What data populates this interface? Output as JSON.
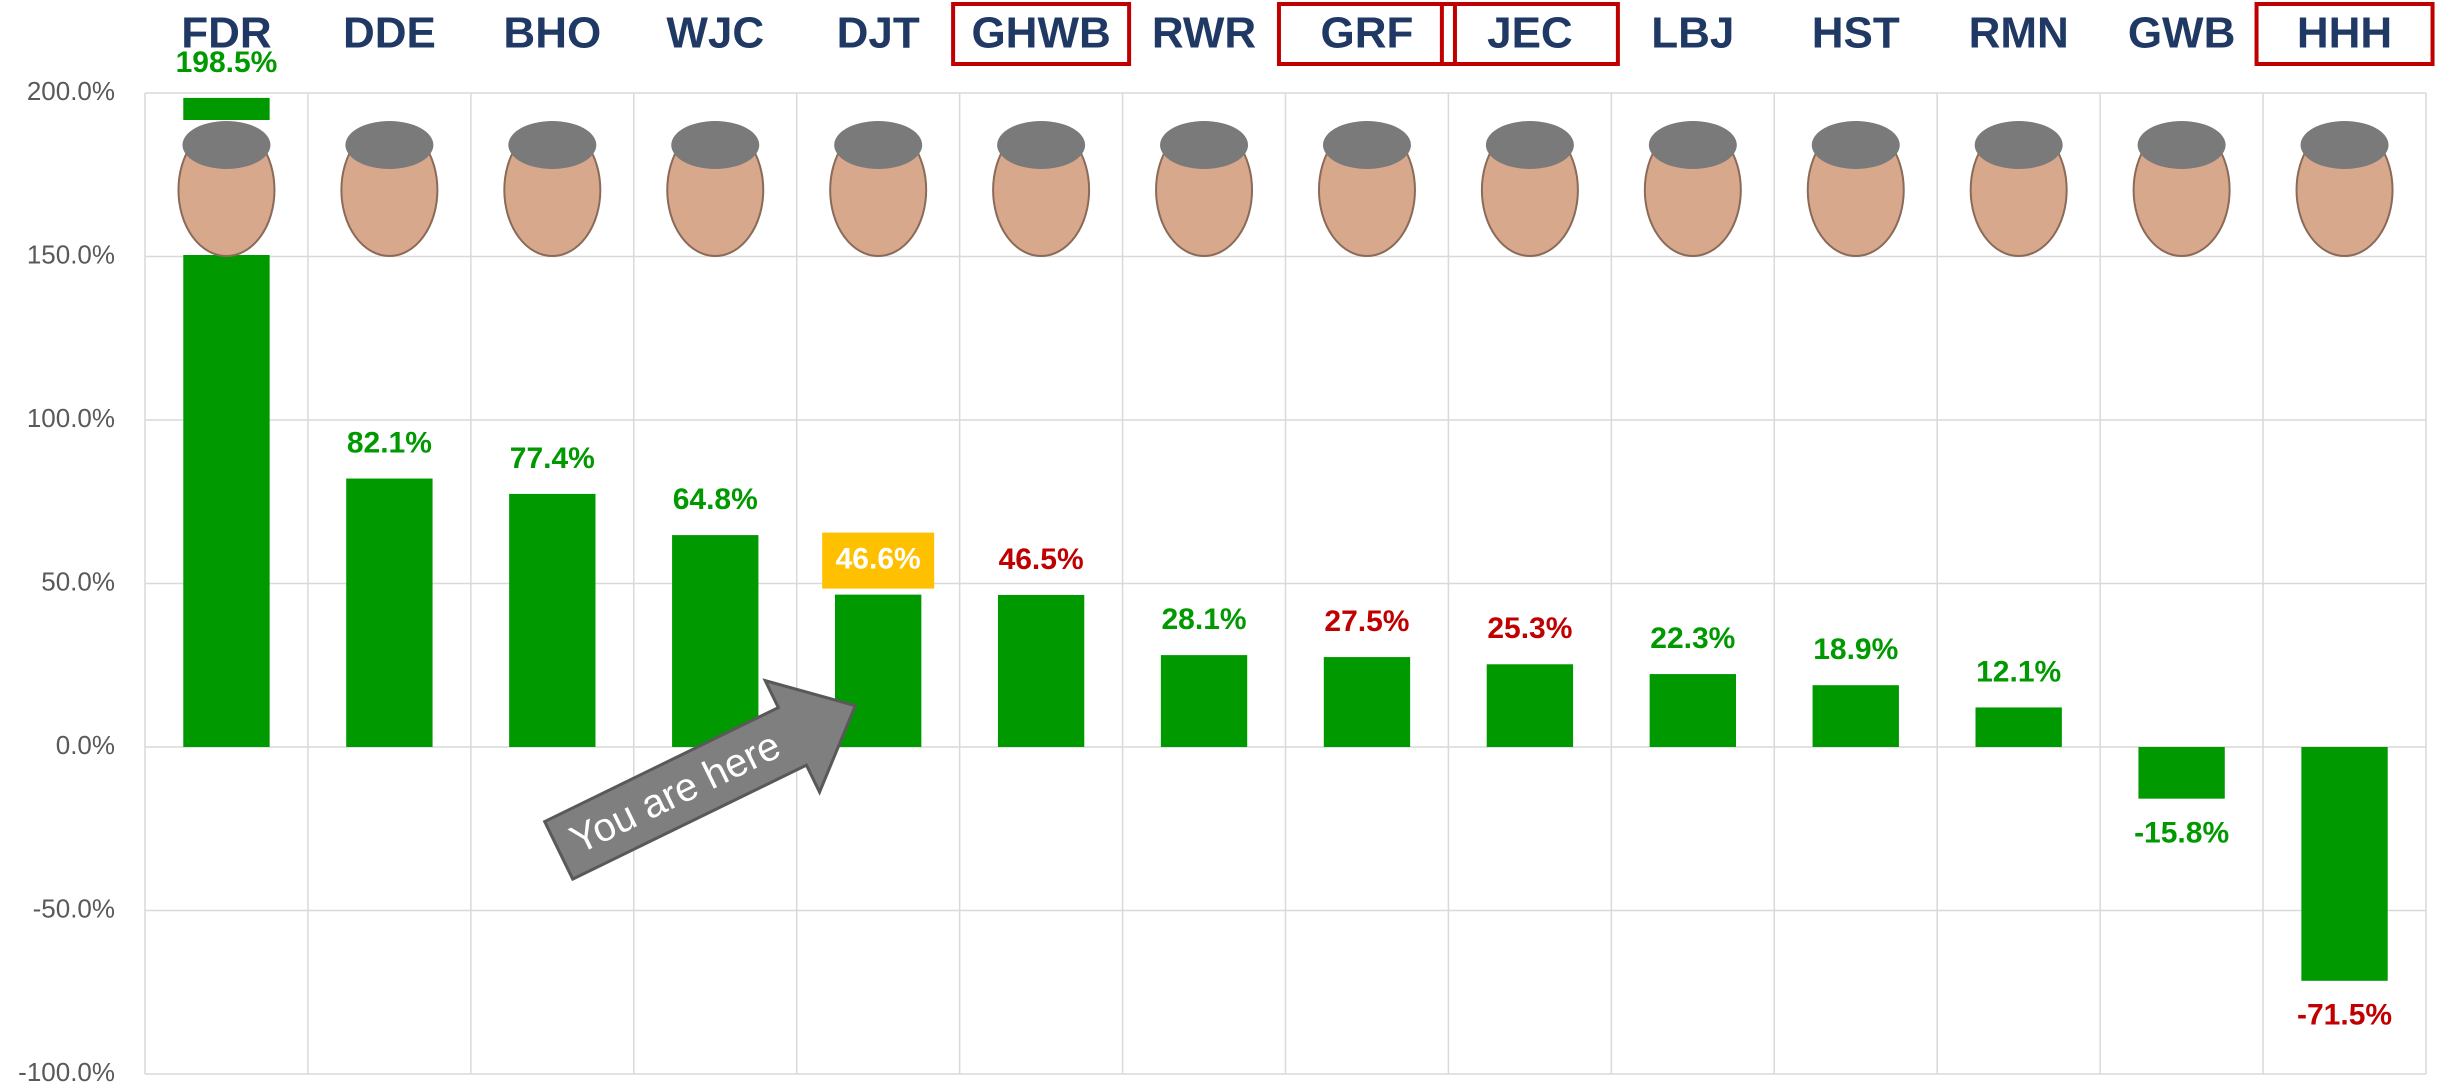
{
  "chart_data": {
    "type": "bar",
    "categories": [
      "FDR",
      "DDE",
      "BHO",
      "WJC",
      "DJT",
      "GHWB",
      "RWR",
      "GRF",
      "JEC",
      "LBJ",
      "HST",
      "RMN",
      "GWB",
      "HHH"
    ],
    "values": [
      198.5,
      82.1,
      77.4,
      64.8,
      46.6,
      46.5,
      28.1,
      27.5,
      25.3,
      22.3,
      18.9,
      12.1,
      -15.8,
      -71.5
    ],
    "value_labels": [
      "198.5%",
      "82.1%",
      "77.4%",
      "64.8%",
      "46.6%",
      "46.5%",
      "28.1%",
      "27.5%",
      "25.3%",
      "22.3%",
      "18.9%",
      "12.1%",
      "-15.8%",
      "-71.5%"
    ],
    "value_label_colors": [
      "#009900",
      "#009900",
      "#009900",
      "#009900",
      "#ffffff",
      "#c00000",
      "#009900",
      "#c00000",
      "#c00000",
      "#009900",
      "#009900",
      "#009900",
      "#009900",
      "#c00000"
    ],
    "boxed": [
      false,
      false,
      false,
      false,
      false,
      true,
      false,
      true,
      true,
      false,
      false,
      false,
      false,
      true
    ],
    "highlight": {
      "index": 4,
      "color": "#ffc000"
    },
    "color": "#009900",
    "ylim": [
      -100,
      200
    ],
    "yticks": [
      {
        "value": -100,
        "label": "-100.0%"
      },
      {
        "value": -50,
        "label": "-50.0%"
      },
      {
        "value": 0,
        "label": "0.0%"
      },
      {
        "value": 50,
        "label": "50.0%"
      },
      {
        "value": 100,
        "label": "100.0%"
      },
      {
        "value": 150,
        "label": "150.0%"
      },
      {
        "value": 200,
        "label": "200.0%"
      }
    ],
    "grid": true,
    "annotation": "You are here"
  }
}
